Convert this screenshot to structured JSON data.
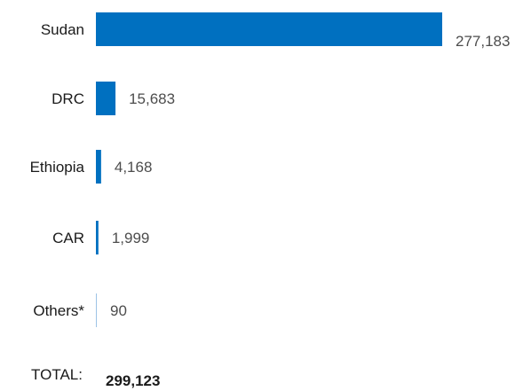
{
  "chart_data": {
    "type": "bar",
    "orientation": "horizontal",
    "title": "",
    "xlabel": "",
    "ylabel": "",
    "categories": [
      "Sudan",
      "DRC",
      "Ethiopia",
      "CAR",
      "Others*"
    ],
    "values": [
      277183,
      15683,
      4168,
      1999,
      90
    ],
    "value_labels": [
      "277,183",
      "15,683",
      "4,168",
      "1,999",
      "90"
    ],
    "xlim": [
      0,
      277183
    ],
    "grid": false,
    "bar_color": "#0070c0",
    "total": {
      "label": "TOTAL:",
      "value": "299,123"
    }
  }
}
